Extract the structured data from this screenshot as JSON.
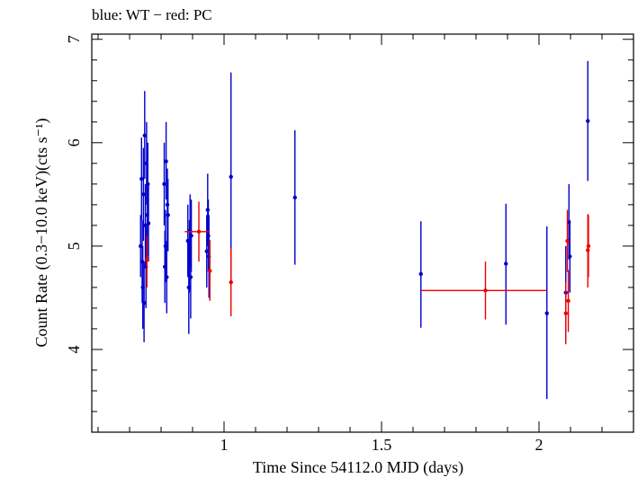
{
  "chart_data": {
    "type": "scatter",
    "title": "blue: WT − red: PC",
    "xlabel": "Time Since 54112.0 MJD (days)",
    "ylabel": "Count Rate (0.3−10.0 keV)(cts s⁻¹)",
    "xlim": [
      0.58,
      2.3
    ],
    "ylim": [
      3.2,
      7.05
    ],
    "x_ticks": [
      1,
      1.5,
      2
    ],
    "x_tick_labels": [
      "1",
      "1.5",
      "2"
    ],
    "y_ticks": [
      4,
      5,
      6,
      7
    ],
    "y_tick_labels": [
      "4",
      "5",
      "6",
      "7"
    ],
    "grid": false,
    "legend": "none",
    "series": [
      {
        "color": "#0000cc",
        "points": [
          {
            "x": 0.735,
            "y": 5.0,
            "ylo": 4.7,
            "yhi": 5.3
          },
          {
            "x": 0.738,
            "y": 5.65,
            "ylo": 5.25,
            "yhi": 6.05
          },
          {
            "x": 0.74,
            "y": 4.85,
            "ylo": 4.45,
            "yhi": 5.25
          },
          {
            "x": 0.742,
            "y": 4.6,
            "ylo": 4.2,
            "yhi": 5.0
          },
          {
            "x": 0.744,
            "y": 5.5,
            "ylo": 5.05,
            "yhi": 5.95
          },
          {
            "x": 0.746,
            "y": 4.45,
            "ylo": 4.07,
            "yhi": 4.85
          },
          {
            "x": 0.748,
            "y": 6.07,
            "ylo": 5.65,
            "yhi": 6.5
          },
          {
            "x": 0.75,
            "y": 5.2,
            "ylo": 4.8,
            "yhi": 5.6
          },
          {
            "x": 0.752,
            "y": 4.8,
            "ylo": 4.4,
            "yhi": 5.2
          },
          {
            "x": 0.754,
            "y": 5.8,
            "ylo": 5.4,
            "yhi": 6.2
          },
          {
            "x": 0.756,
            "y": 5.3,
            "ylo": 4.9,
            "yhi": 5.7
          },
          {
            "x": 0.758,
            "y": 5.6,
            "ylo": 5.2,
            "yhi": 6.0
          },
          {
            "x": 0.76,
            "y": 5.22,
            "ylo": 4.85,
            "yhi": 5.6
          },
          {
            "x": 0.81,
            "y": 5.6,
            "ylo": 5.2,
            "yhi": 6.0
          },
          {
            "x": 0.812,
            "y": 4.8,
            "ylo": 4.45,
            "yhi": 5.15
          },
          {
            "x": 0.814,
            "y": 5.0,
            "ylo": 4.65,
            "yhi": 5.35
          },
          {
            "x": 0.816,
            "y": 5.82,
            "ylo": 5.45,
            "yhi": 6.2
          },
          {
            "x": 0.818,
            "y": 4.7,
            "ylo": 4.35,
            "yhi": 5.05
          },
          {
            "x": 0.82,
            "y": 5.4,
            "ylo": 5.05,
            "yhi": 5.75
          },
          {
            "x": 0.822,
            "y": 5.3,
            "ylo": 4.95,
            "yhi": 5.65
          },
          {
            "x": 0.885,
            "y": 5.05,
            "ylo": 4.7,
            "yhi": 5.4
          },
          {
            "x": 0.888,
            "y": 4.6,
            "ylo": 4.15,
            "yhi": 5.05
          },
          {
            "x": 0.89,
            "y": 4.9,
            "ylo": 4.55,
            "yhi": 5.25
          },
          {
            "x": 0.892,
            "y": 5.15,
            "ylo": 4.8,
            "yhi": 5.5
          },
          {
            "x": 0.894,
            "y": 4.7,
            "ylo": 4.3,
            "yhi": 5.1
          },
          {
            "x": 0.896,
            "y": 5.1,
            "ylo": 4.75,
            "yhi": 5.45
          },
          {
            "x": 0.945,
            "y": 4.95,
            "ylo": 4.6,
            "yhi": 5.3
          },
          {
            "x": 0.948,
            "y": 5.35,
            "ylo": 5.0,
            "yhi": 5.7
          },
          {
            "x": 0.95,
            "y": 5.1,
            "ylo": 4.75,
            "yhi": 5.45
          },
          {
            "x": 0.952,
            "y": 4.9,
            "ylo": 4.5,
            "yhi": 5.3
          },
          {
            "x": 1.022,
            "y": 5.67,
            "ylo": 4.65,
            "yhi": 6.68
          },
          {
            "x": 1.225,
            "y": 5.47,
            "ylo": 4.82,
            "yhi": 6.12
          },
          {
            "x": 1.625,
            "y": 4.73,
            "ylo": 4.21,
            "yhi": 5.24
          },
          {
            "x": 1.895,
            "y": 4.83,
            "ylo": 4.24,
            "yhi": 5.41
          },
          {
            "x": 2.025,
            "y": 4.35,
            "ylo": 3.52,
            "yhi": 5.19
          },
          {
            "x": 2.085,
            "y": 4.55,
            "ylo": 4.1,
            "yhi": 5.0
          },
          {
            "x": 2.095,
            "y": 5.23,
            "ylo": 4.87,
            "yhi": 5.6
          },
          {
            "x": 2.098,
            "y": 4.9,
            "ylo": 4.55,
            "yhi": 5.25
          },
          {
            "x": 2.155,
            "y": 6.21,
            "ylo": 5.63,
            "yhi": 6.79
          }
        ]
      },
      {
        "color": "#ee0000",
        "points": [
          {
            "x": 0.755,
            "y": 4.87,
            "ylo": 4.6,
            "yhi": 5.1,
            "xlo": 0.748,
            "xhi": 0.762
          },
          {
            "x": 0.92,
            "y": 5.14,
            "ylo": 4.85,
            "yhi": 5.43,
            "xlo": 0.875,
            "xhi": 0.955
          },
          {
            "x": 0.955,
            "y": 4.76,
            "ylo": 4.47,
            "yhi": 5.06
          },
          {
            "x": 1.022,
            "y": 4.65,
            "ylo": 4.32,
            "yhi": 4.98
          },
          {
            "x": 1.83,
            "y": 4.57,
            "ylo": 4.29,
            "yhi": 4.85,
            "xlo": 1.625,
            "xhi": 2.025
          },
          {
            "x": 2.085,
            "y": 4.35,
            "ylo": 4.05,
            "yhi": 4.65
          },
          {
            "x": 2.09,
            "y": 5.05,
            "ylo": 4.75,
            "yhi": 5.35
          },
          {
            "x": 2.093,
            "y": 4.47,
            "ylo": 4.17,
            "yhi": 4.77
          },
          {
            "x": 2.155,
            "y": 4.96,
            "ylo": 4.6,
            "yhi": 5.31
          },
          {
            "x": 2.157,
            "y": 5.0,
            "ylo": 4.7,
            "yhi": 5.3
          }
        ]
      }
    ]
  }
}
